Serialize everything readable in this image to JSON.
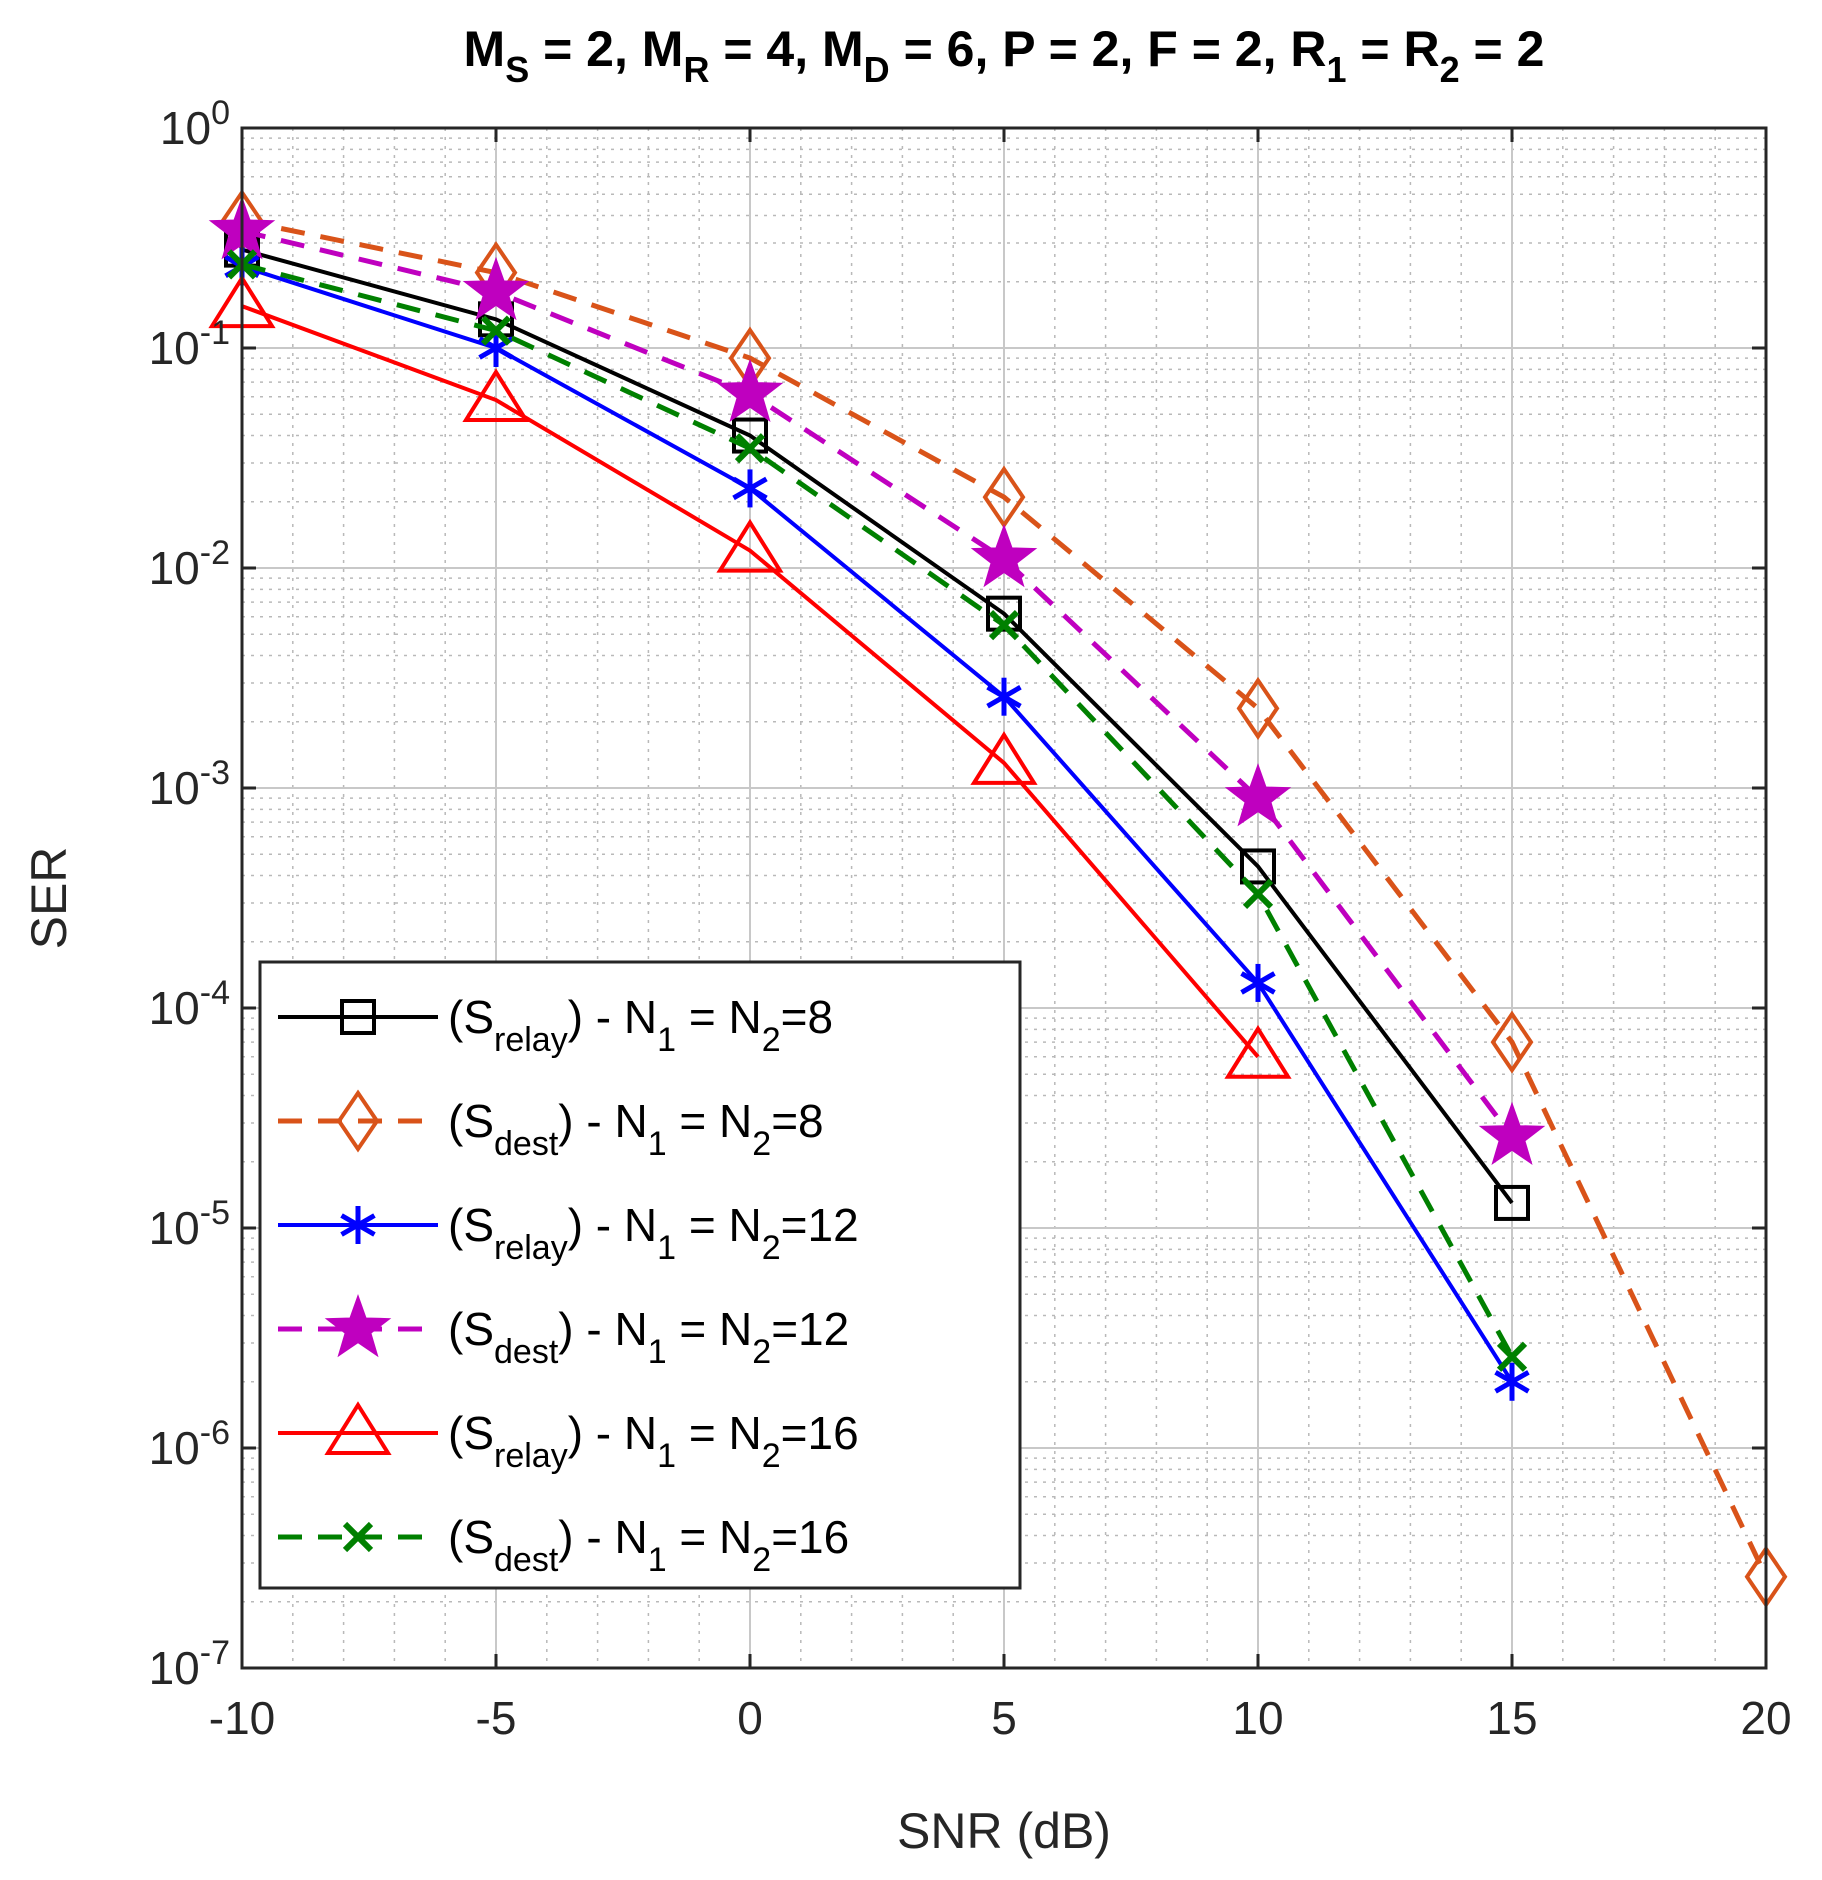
{
  "chart_data": {
    "type": "line",
    "title": {
      "text": "M_S = 2, M_R = 4, M_D = 6, P = 2, F = 2, R_1 = R_2 = 2",
      "parts": [
        {
          "t": "M"
        },
        {
          "t": "S",
          "sub": true
        },
        {
          "t": " = 2, M"
        },
        {
          "t": "R",
          "sub": true
        },
        {
          "t": " = 4, M"
        },
        {
          "t": "D",
          "sub": true
        },
        {
          "t": " = 6, P = 2, F = 2, R"
        },
        {
          "t": "1",
          "sub": true
        },
        {
          "t": " = R"
        },
        {
          "t": "2",
          "sub": true
        },
        {
          "t": " = 2"
        }
      ]
    },
    "xlabel": "SNR (dB)",
    "ylabel": "SER",
    "xlim": [
      -10,
      20
    ],
    "ylim": [
      1e-07,
      1
    ],
    "yscale": "log",
    "grid": true,
    "minor_grid": true,
    "legend_location": "bottom-left",
    "xticks": [
      -10,
      -5,
      0,
      5,
      10,
      15,
      20
    ],
    "xtick_labels": [
      "-10",
      "-5",
      "0",
      "5",
      "10",
      "15",
      "20"
    ],
    "yticks": [
      {
        "value": 1.0,
        "base": "10",
        "exp": "0"
      },
      {
        "value": 0.1,
        "base": "10",
        "exp": "-1"
      },
      {
        "value": 0.01,
        "base": "10",
        "exp": "-2"
      },
      {
        "value": 0.001,
        "base": "10",
        "exp": "-3"
      },
      {
        "value": 0.0001,
        "base": "10",
        "exp": "-4"
      },
      {
        "value": 1e-05,
        "base": "10",
        "exp": "-5"
      },
      {
        "value": 1e-06,
        "base": "10",
        "exp": "-6"
      },
      {
        "value": 1e-07,
        "base": "10",
        "exp": "-7"
      }
    ],
    "series": [
      {
        "name": "(S_relay) - N_1 = N_2=8",
        "legend": {
          "sub1": "relay",
          "n2": "=8",
          "pre": "(S",
          "post": ") - N",
          "mid": " = N"
        },
        "color": "#000000",
        "dash": "solid",
        "marker": "square",
        "x": [
          -10,
          -5,
          0,
          5,
          10,
          15
        ],
        "y": [
          0.28,
          0.135,
          0.04,
          0.0062,
          0.00044,
          1.3e-05
        ]
      },
      {
        "name": "(S_dest) - N_1 = N_2=8",
        "legend": {
          "sub1": "dest",
          "n2": "=8",
          "pre": "(S",
          "post": ") - N",
          "mid": " = N"
        },
        "color": "#d95319",
        "dash": "dashed",
        "marker": "diamond",
        "x": [
          -10,
          -5,
          0,
          5,
          10,
          15,
          20
        ],
        "y": [
          0.38,
          0.22,
          0.09,
          0.021,
          0.0023,
          7e-05,
          2.6e-07
        ]
      },
      {
        "name": "(S_relay) - N_1 = N_2=12",
        "legend": {
          "sub1": "relay",
          "n2": "=12",
          "pre": "(S",
          "post": ") - N",
          "mid": " = N"
        },
        "color": "#0000ff",
        "dash": "solid",
        "marker": "asterisk",
        "x": [
          -10,
          -5,
          0,
          5,
          10,
          15
        ],
        "y": [
          0.235,
          0.1,
          0.023,
          0.0026,
          0.00013,
          2e-06
        ]
      },
      {
        "name": "(S_dest) - N_1 = N_2=12",
        "legend": {
          "sub1": "dest",
          "n2": "=12",
          "pre": "(S",
          "post": ") - N",
          "mid": " = N"
        },
        "color": "#bf00bf",
        "dash": "dashed",
        "marker": "pentagram",
        "x": [
          -10,
          -5,
          0,
          5,
          10,
          15
        ],
        "y": [
          0.34,
          0.18,
          0.062,
          0.011,
          0.0009,
          2.6e-05
        ]
      },
      {
        "name": "(S_relay) - N_1 = N_2=16",
        "legend": {
          "sub1": "relay",
          "n2": "=16",
          "pre": "(S",
          "post": ") - N",
          "mid": " = N"
        },
        "color": "#ff0000",
        "dash": "solid",
        "marker": "triangle",
        "x": [
          -10,
          -5,
          0,
          5,
          10
        ],
        "y": [
          0.155,
          0.058,
          0.012,
          0.0013,
          6e-05
        ]
      },
      {
        "name": "(S_dest) - N_1 = N_2=16",
        "legend": {
          "sub1": "dest",
          "n2": "=16",
          "pre": "(S",
          "post": ") - N",
          "mid": " = N"
        },
        "color": "#008000",
        "dash": "dashed",
        "marker": "x",
        "x": [
          -10,
          -5,
          0,
          5,
          10,
          15
        ],
        "y": [
          0.24,
          0.12,
          0.035,
          0.0055,
          0.00033,
          2.6e-06
        ]
      }
    ]
  }
}
